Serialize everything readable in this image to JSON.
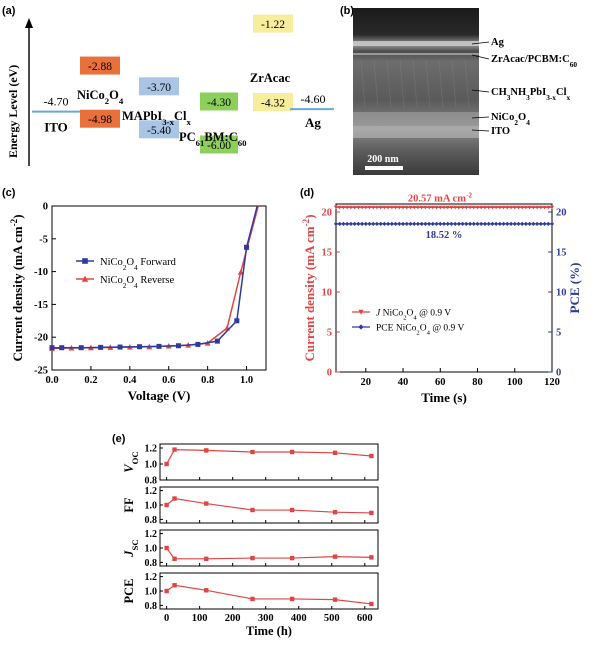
{
  "chart_data": [
    {
      "panel": "(a)",
      "type": "energy-level-diagram",
      "ylabel": "Energy Level (eV)",
      "levels": [
        {
          "label": "ITO",
          "values": [
            -4.7
          ],
          "colors": [
            "#6aa8d8"
          ],
          "style": "line"
        },
        {
          "label": "NiCo2O4",
          "values": [
            -2.88,
            -4.98
          ],
          "colors": [
            "#e8703a",
            "#e8703a"
          ],
          "style": "box"
        },
        {
          "label": "MAPbI3-xClx",
          "values": [
            -3.7,
            -5.4
          ],
          "colors": [
            "#a9c4e4",
            "#a9c4e4"
          ],
          "style": "box"
        },
        {
          "label": "PC61BM:C60",
          "values": [
            -4.3,
            -6.0
          ],
          "colors": [
            "#8ccf5a",
            "#8ccf5a"
          ],
          "style": "box"
        },
        {
          "label": "ZrAcac",
          "values": [
            -1.22,
            -4.32
          ],
          "colors": [
            "#f6ee9c",
            "#f6ee9c"
          ],
          "style": "box"
        },
        {
          "label": "Ag",
          "values": [
            -4.6
          ],
          "colors": [
            "#6aa8d8"
          ],
          "style": "line"
        }
      ],
      "display_text": {
        "ito": [
          "-4.70",
          "ITO"
        ],
        "ag": [
          "-4.60",
          "Ag"
        ],
        "nico": [
          "-2.88",
          "-4.98",
          "NiCo",
          "2",
          "O",
          "4"
        ],
        "mapbi": [
          "-3.70",
          "-5.40",
          "MAPbI",
          "3-x",
          "Cl",
          "x"
        ],
        "pcbm": [
          "-4.30",
          "-6.00",
          "PC",
          "61",
          "BM:C",
          "60"
        ],
        "zr": [
          "-1.22",
          "-4.32",
          "ZrAcac"
        ]
      }
    },
    {
      "panel": "(b)",
      "type": "cross-section-image",
      "layers": [
        "Ag",
        "ZrAcac/PCBM:C60",
        "CH3NH3PbI3-xClx",
        "NiCo2O4",
        "ITO"
      ],
      "layer_text": [
        [
          "Ag"
        ],
        [
          "ZrAcac/PCBM:C",
          "60"
        ],
        [
          "CH",
          "3",
          "NH",
          "3",
          "PbI",
          "3-x",
          "Cl",
          "x"
        ],
        [
          "NiCo",
          "2",
          "O",
          "4"
        ],
        [
          "ITO"
        ]
      ],
      "scale_bar": "200 nm"
    },
    {
      "panel": "(c)",
      "type": "line",
      "xlabel": "Voltage (V)",
      "ylabel": "Current density (mA cm",
      "ylabel_sup": "-2",
      "ylabel_end": ")",
      "xlim": [
        0.0,
        1.1
      ],
      "ylim": [
        -25,
        0
      ],
      "xticks": [
        "0.0",
        "0.2",
        "0.4",
        "0.6",
        "0.8",
        "1.0"
      ],
      "xtick_values": [
        0.0,
        0.2,
        0.4,
        0.6,
        0.8,
        1.0
      ],
      "yticks": [
        "0",
        "-5",
        "-10",
        "-15",
        "-20",
        "-25"
      ],
      "ytick_values": [
        0,
        -5,
        -10,
        -15,
        -20,
        -25
      ],
      "legend": "middle-left",
      "series": [
        {
          "name": "NiCo2O4 Forward",
          "name_parts": [
            "NiCo",
            "2",
            "O",
            "4",
            " Forward"
          ],
          "color": "#2f3a9c",
          "marker": "square",
          "x": [
            0.0,
            0.05,
            0.15,
            0.25,
            0.35,
            0.45,
            0.55,
            0.65,
            0.75,
            0.85,
            0.95,
            1.0
          ],
          "y": [
            -21.6,
            -21.6,
            -21.6,
            -21.55,
            -21.5,
            -21.45,
            -21.4,
            -21.3,
            -21.1,
            -20.6,
            -17.5,
            -6.3
          ]
        },
        {
          "name": "NiCo2O4 Reverse",
          "name_parts": [
            "NiCo",
            "2",
            "O",
            "4",
            " Reverse"
          ],
          "color": "#e04545",
          "marker": "triangle",
          "x": [
            0.0,
            0.1,
            0.2,
            0.3,
            0.4,
            0.5,
            0.6,
            0.7,
            0.8,
            0.9,
            0.97
          ],
          "y": [
            -21.7,
            -21.65,
            -21.6,
            -21.55,
            -21.5,
            -21.45,
            -21.35,
            -21.2,
            -20.9,
            -18.6,
            -10.1
          ]
        }
      ]
    },
    {
      "panel": "(d)",
      "type": "line",
      "xlabel": "Time (s)",
      "ylabel_left": "Current density (mA cm",
      "ylabel_left_sup": "-2",
      "ylabel_left_end": ")",
      "ylabel_right": "PCE (%)",
      "xlim": [
        4,
        120
      ],
      "ylim_left": [
        0,
        21
      ],
      "ylim_right": [
        0,
        21
      ],
      "xticks": [
        "20",
        "40",
        "60",
        "80",
        "100",
        "120"
      ],
      "xtick_values": [
        20,
        40,
        60,
        80,
        100,
        120
      ],
      "yticks_left": [
        "0",
        "5",
        "10",
        "15",
        "20"
      ],
      "yticks_right": [
        "0",
        "5",
        "10",
        "15",
        "20"
      ],
      "ytick_values": [
        0,
        5,
        10,
        15,
        20
      ],
      "annotations": [
        {
          "text": "20.57 mA cm",
          "sup": "-2",
          "x": 62,
          "y": 20.57
        },
        {
          "text": "18.52 %",
          "x": 62,
          "y": 18.52
        }
      ],
      "series": [
        {
          "name": "J NiCo2O4 @ 0.9 V",
          "name_parts": [
            "J",
            " NiCo",
            "2",
            "O",
            "4",
            " @ 0.9 V"
          ],
          "axis": "left",
          "color": "#e04545",
          "marker": "triangle-down",
          "x_start": 4,
          "x_end": 120,
          "value": 20.57
        },
        {
          "name": "PCE NiCo2O4 @ 0.9 V",
          "name_parts": [
            "PCE",
            " NiCo",
            "2",
            "O",
            "4",
            " @ 0.9 V"
          ],
          "axis": "right",
          "color": "#2f3a9c",
          "marker": "diamond",
          "x_start": 4,
          "x_end": 120,
          "value": 18.52
        }
      ]
    },
    {
      "panel": "(e)",
      "type": "line",
      "xlabel": "Time (h)",
      "xlim": [
        -20,
        640
      ],
      "xticks": [
        "0",
        "100",
        "200",
        "300",
        "400",
        "500",
        "600"
      ],
      "xtick_values": [
        0,
        100,
        200,
        300,
        400,
        500,
        600
      ],
      "color": "#e04545",
      "subplots": [
        {
          "ylabel": "V",
          "ylabel_sub": "OC",
          "ylim": [
            0.8,
            1.25
          ],
          "yticks": [
            "1.2",
            "1.0",
            "0.8"
          ],
          "ytick_values": [
            1.2,
            1.0,
            0.8
          ],
          "x": [
            0,
            24,
            120,
            260,
            380,
            510,
            620
          ],
          "y": [
            1.0,
            1.18,
            1.17,
            1.15,
            1.15,
            1.14,
            1.1
          ]
        },
        {
          "ylabel": "FF",
          "ylim": [
            0.75,
            1.25
          ],
          "yticks": [
            "1.2",
            "1.0",
            "0.8"
          ],
          "ytick_values": [
            1.2,
            1.0,
            0.8
          ],
          "x": [
            0,
            24,
            120,
            260,
            380,
            510,
            620
          ],
          "y": [
            1.0,
            1.09,
            1.02,
            0.93,
            0.93,
            0.9,
            0.89
          ]
        },
        {
          "ylabel": "J",
          "ylabel_sub": "SC",
          "ylim": [
            0.75,
            1.25
          ],
          "yticks": [
            "1.2",
            "1.0",
            "0.8"
          ],
          "ytick_values": [
            1.2,
            1.0,
            0.8
          ],
          "x": [
            0,
            24,
            120,
            260,
            380,
            510,
            620
          ],
          "y": [
            1.0,
            0.85,
            0.85,
            0.86,
            0.86,
            0.88,
            0.87
          ]
        },
        {
          "ylabel": "PCE",
          "ylim": [
            0.75,
            1.25
          ],
          "yticks": [
            "1.2",
            "1.0",
            "0.8"
          ],
          "ytick_values": [
            1.2,
            1.0,
            0.8
          ],
          "x": [
            0,
            24,
            120,
            260,
            380,
            510,
            620
          ],
          "y": [
            1.0,
            1.08,
            1.01,
            0.89,
            0.89,
            0.88,
            0.82
          ]
        }
      ]
    }
  ]
}
